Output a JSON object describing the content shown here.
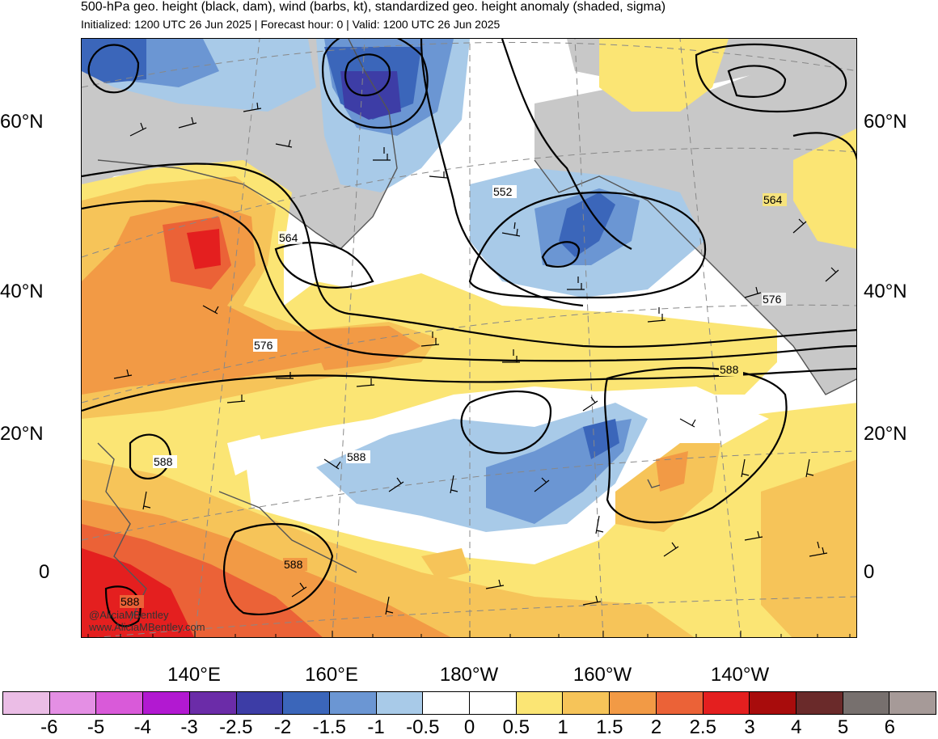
{
  "header": {
    "title": "500-hPa geo. height (black, dam), wind (barbs, kt), standardized geo. height anomaly (shaded, sigma)",
    "subtitle": "Initialized: 1200 UTC 26 Jun 2025 | Forecast hour: 0 | Valid: 1200 UTC 26 Jun 2025"
  },
  "map": {
    "lat_labels": [
      "60°N",
      "40°N",
      "20°N",
      "0"
    ],
    "lon_labels": [
      "140°E",
      "160°E",
      "180°W",
      "160°W",
      "140°W"
    ],
    "contour_labels": [
      "552",
      "564",
      "564",
      "576",
      "576",
      "588",
      "588",
      "588",
      "588",
      "588"
    ],
    "credit": [
      "@AliciaMBentley",
      "www.AliciaMBentley.com"
    ]
  },
  "colorbar": {
    "labels": [
      "-6",
      "-5",
      "-4",
      "-3",
      "-2.5",
      "-2",
      "-1.5",
      "-1",
      "-0.5",
      "0",
      "0.5",
      "1",
      "1.5",
      "2",
      "2.5",
      "3",
      "4",
      "5",
      "6"
    ],
    "colors": [
      "#ebbde6",
      "#e48fe4",
      "#d95ad9",
      "#b219d1",
      "#6b2ca8",
      "#3d3da6",
      "#3b66ba",
      "#6b96d3",
      "#a8cae8",
      "#ffffff",
      "#ffffff",
      "#fbe574",
      "#f6c459",
      "#f29a45",
      "#eb6237",
      "#e41f1f",
      "#a80c0c",
      "#6a2a2a",
      "#77706e",
      "#a69a98"
    ]
  },
  "palette": {
    "land": "#c8c8c8",
    "neg1": "#a8cae8",
    "neg2": "#6b96d3",
    "neg3": "#3b66ba",
    "neg4": "#3d3da6",
    "pos1": "#fbe574",
    "pos2": "#f6c459",
    "pos3": "#f29a45",
    "pos4": "#eb6237",
    "pos5": "#e41f1f"
  }
}
